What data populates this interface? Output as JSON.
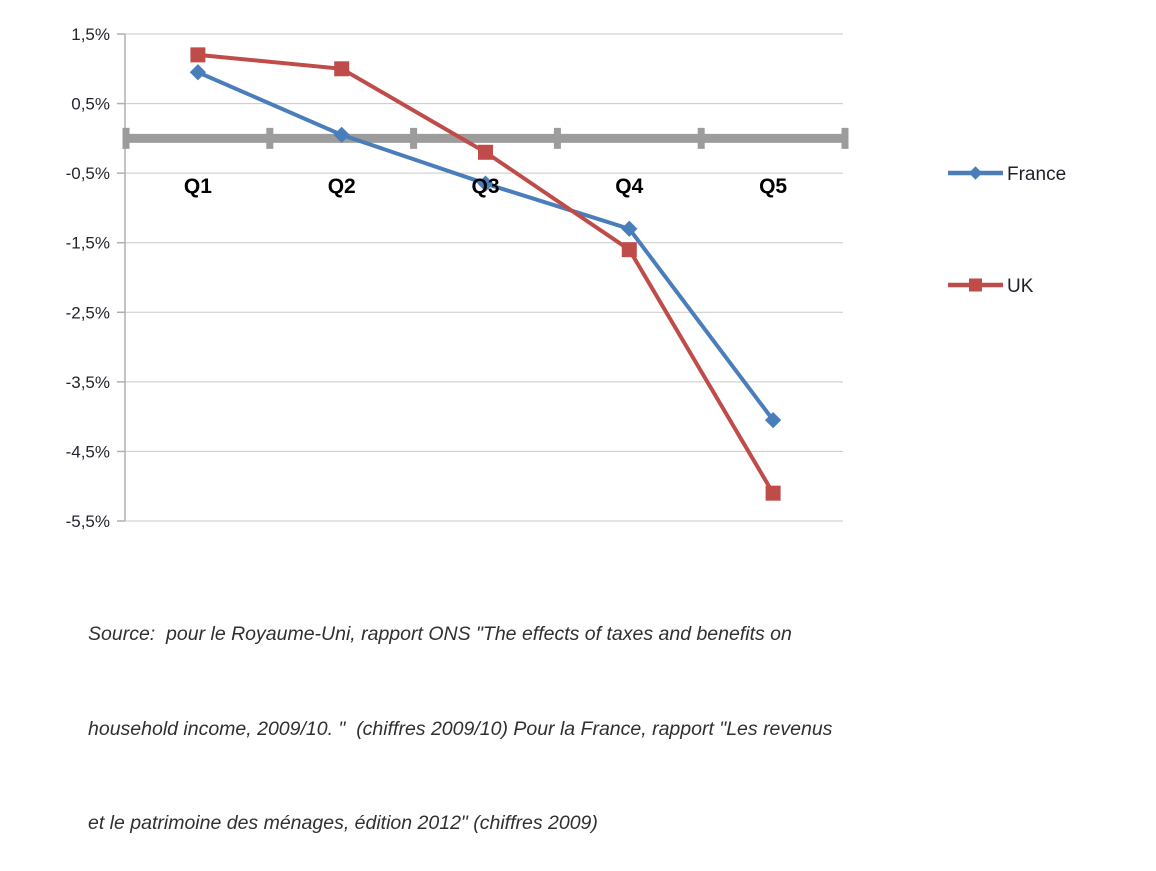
{
  "chart_data": {
    "type": "line",
    "title": "",
    "xlabel": "",
    "ylabel": "",
    "categories": [
      "Q1",
      "Q2",
      "Q3",
      "Q4",
      "Q5"
    ],
    "series": [
      {
        "name": "France",
        "color": "#4a7ebb",
        "marker": "diamond",
        "values": [
          0.95,
          0.05,
          -0.65,
          -1.3,
          -4.05
        ]
      },
      {
        "name": "UK",
        "color": "#bf4c49",
        "marker": "square",
        "values": [
          1.2,
          1.0,
          -0.2,
          -1.6,
          -5.1
        ]
      }
    ],
    "y_axis": {
      "min": -5.5,
      "max": 1.5,
      "ticks": [
        {
          "label": "1,5%",
          "value": 1.5
        },
        {
          "label": "0,5%",
          "value": 0.5
        },
        {
          "label": "-0,5%",
          "value": -0.5
        },
        {
          "label": "-1,5%",
          "value": -1.5
        },
        {
          "label": "-2,5%",
          "value": -2.5
        },
        {
          "label": "-3,5%",
          "value": -3.5
        },
        {
          "label": "-4,5%",
          "value": -4.5
        },
        {
          "label": "-5,5%",
          "value": -5.5
        }
      ]
    },
    "zero_axis": {
      "value": 0,
      "color": "#9c9c9c"
    },
    "gridline_color": "#c9c9c9",
    "axis_color": "#b0b0b0",
    "grid": true,
    "legend_position": "right"
  },
  "source": {
    "lines": [
      "Source:  pour le Royaume-Uni, rapport ONS \"The effects of taxes and benefits on",
      "household income, 2009/10. \"  (chiffres 2009/10) Pour la France, rapport \"Les revenus",
      "et le patrimoine des ménages, édition 2012\" (chiffres 2009)"
    ]
  }
}
